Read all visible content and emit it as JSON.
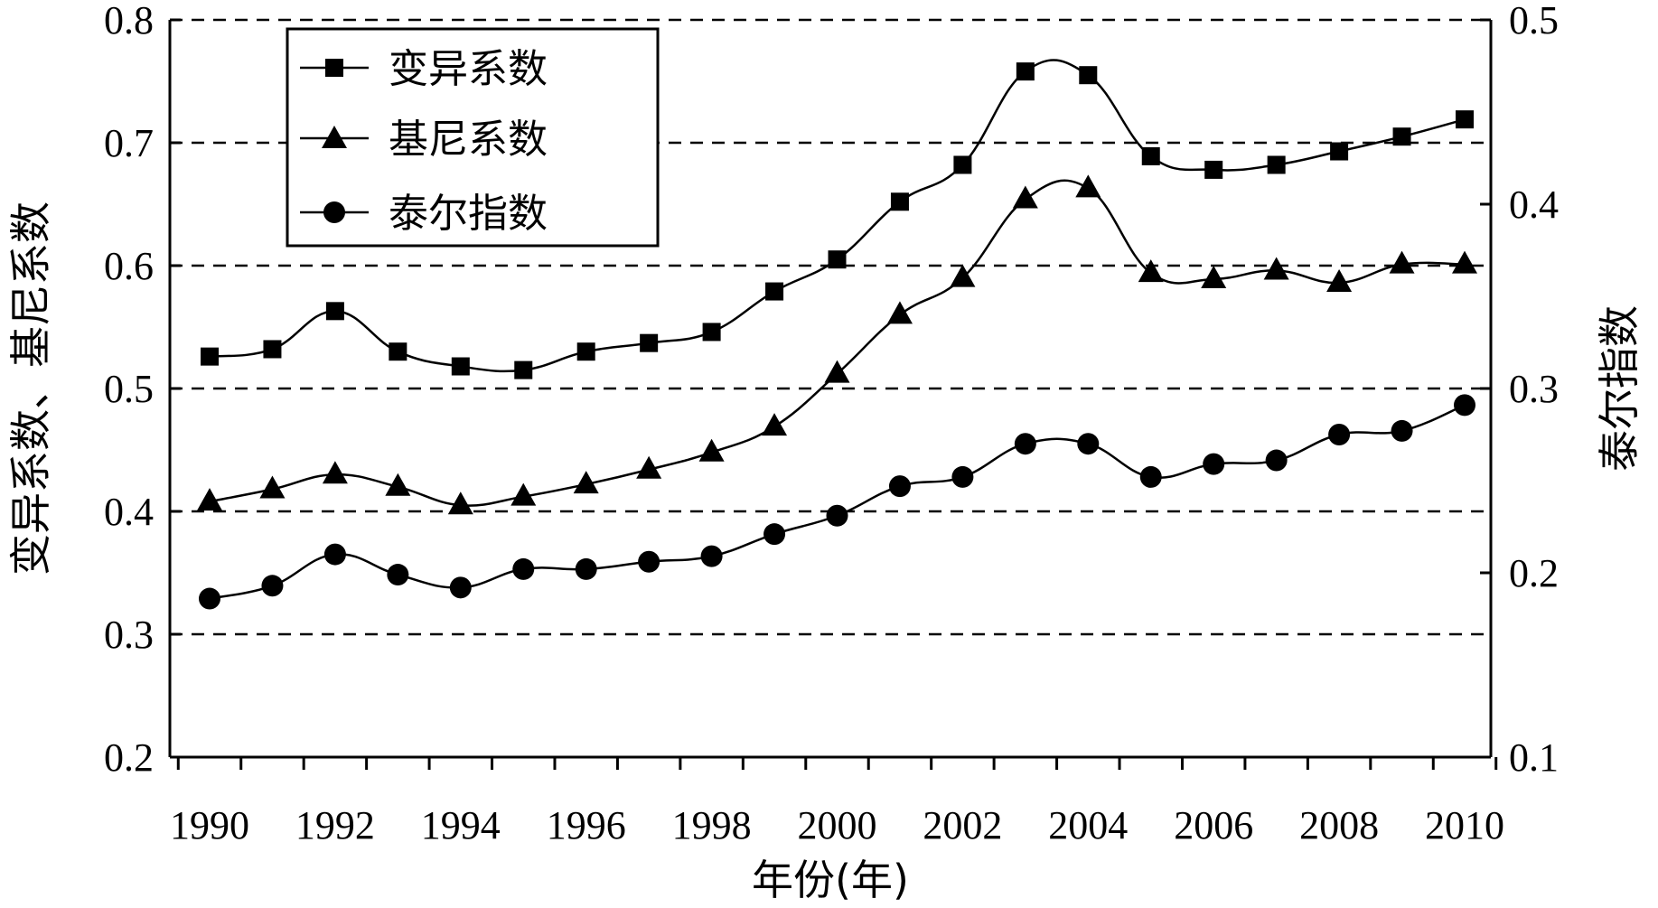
{
  "chart_data": {
    "type": "line",
    "x": [
      1990,
      1991,
      1992,
      1993,
      1994,
      1995,
      1996,
      1997,
      1998,
      1999,
      2000,
      2001,
      2002,
      2003,
      2004,
      2005,
      2006,
      2007,
      2008,
      2009,
      2010
    ],
    "x_tick_labels": [
      "1990",
      "1992",
      "1994",
      "1996",
      "1998",
      "2000",
      "2002",
      "2004",
      "2006",
      "2008",
      "2010"
    ],
    "xlabel": "年份(年)",
    "ylabel_left": "变异系数、基尼系数",
    "ylabel_right": "泰尔指数",
    "ylim_left": [
      0.2,
      0.8
    ],
    "ylim_right": [
      0.1,
      0.5
    ],
    "y_left_tick_labels": [
      "0.2",
      "0.3",
      "0.4",
      "0.5",
      "0.6",
      "0.7",
      "0.8"
    ],
    "y_right_tick_labels": [
      "0.1",
      "0.2",
      "0.3",
      "0.4",
      "0.5"
    ],
    "grid": "horizontal dashed at left-axis ticks",
    "legend_placement": "top-left",
    "series": [
      {
        "name": "变异系数",
        "axis": "left",
        "marker": "square",
        "values": [
          0.526,
          0.532,
          0.563,
          0.53,
          0.518,
          0.515,
          0.53,
          0.537,
          0.546,
          0.579,
          0.605,
          0.652,
          0.682,
          0.758,
          0.755,
          0.689,
          0.678,
          0.682,
          0.693,
          0.705,
          0.719
        ]
      },
      {
        "name": "基尼系数",
        "axis": "left",
        "marker": "triangle",
        "values": [
          0.408,
          0.418,
          0.43,
          0.42,
          0.405,
          0.412,
          0.422,
          0.434,
          0.448,
          0.469,
          0.512,
          0.56,
          0.59,
          0.654,
          0.663,
          0.594,
          0.589,
          0.596,
          0.586,
          0.601,
          0.601
        ]
      },
      {
        "name": "泰尔指数",
        "axis": "right",
        "marker": "circle",
        "values": [
          0.186,
          0.193,
          0.21,
          0.199,
          0.192,
          0.202,
          0.202,
          0.206,
          0.209,
          0.221,
          0.231,
          0.247,
          0.252,
          0.27,
          0.27,
          0.252,
          0.259,
          0.261,
          0.275,
          0.277,
          0.291
        ]
      }
    ]
  }
}
